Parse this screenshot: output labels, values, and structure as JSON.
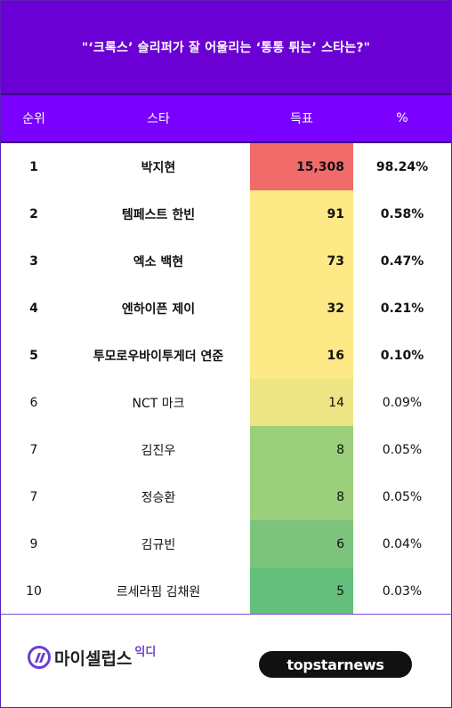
{
  "title": "\"‘크록스’ 슬리퍼가 잘 어울리는 ‘통통 튀는’ 스타는?\"",
  "columns": {
    "rank": "순위",
    "star": "스타",
    "votes": "득표",
    "percent": "%"
  },
  "rows": [
    {
      "rank": "1",
      "name": "박지현",
      "votes": "15,308",
      "percent": "98.24%",
      "color": "#f26b6b"
    },
    {
      "rank": "2",
      "name": "템페스트 한빈",
      "votes": "91",
      "percent": "0.58%",
      "color": "#fde985"
    },
    {
      "rank": "3",
      "name": "엑소 백현",
      "votes": "73",
      "percent": "0.47%",
      "color": "#fde985"
    },
    {
      "rank": "4",
      "name": "엔하이픈 제이",
      "votes": "32",
      "percent": "0.21%",
      "color": "#fde985"
    },
    {
      "rank": "5",
      "name": "투모로우바이투게더 연준",
      "votes": "16",
      "percent": "0.10%",
      "color": "#fde985"
    },
    {
      "rank": "6",
      "name": "NCT 마크",
      "votes": "14",
      "percent": "0.09%",
      "color": "#ede583"
    },
    {
      "rank": "7",
      "name": "김진우",
      "votes": "8",
      "percent": "0.05%",
      "color": "#9bcf7c"
    },
    {
      "rank": "7",
      "name": "정승환",
      "votes": "8",
      "percent": "0.05%",
      "color": "#9bcf7c"
    },
    {
      "rank": "9",
      "name": "김규빈",
      "votes": "6",
      "percent": "0.04%",
      "color": "#7cc47c"
    },
    {
      "rank": "10",
      "name": "르세라핌 김채원",
      "votes": "5",
      "percent": "0.03%",
      "color": "#64bf7c"
    }
  ],
  "footer": {
    "logo_left_name": "마이셀럽스",
    "logo_left_sub": "익디",
    "logo_right": "topstarnews"
  }
}
